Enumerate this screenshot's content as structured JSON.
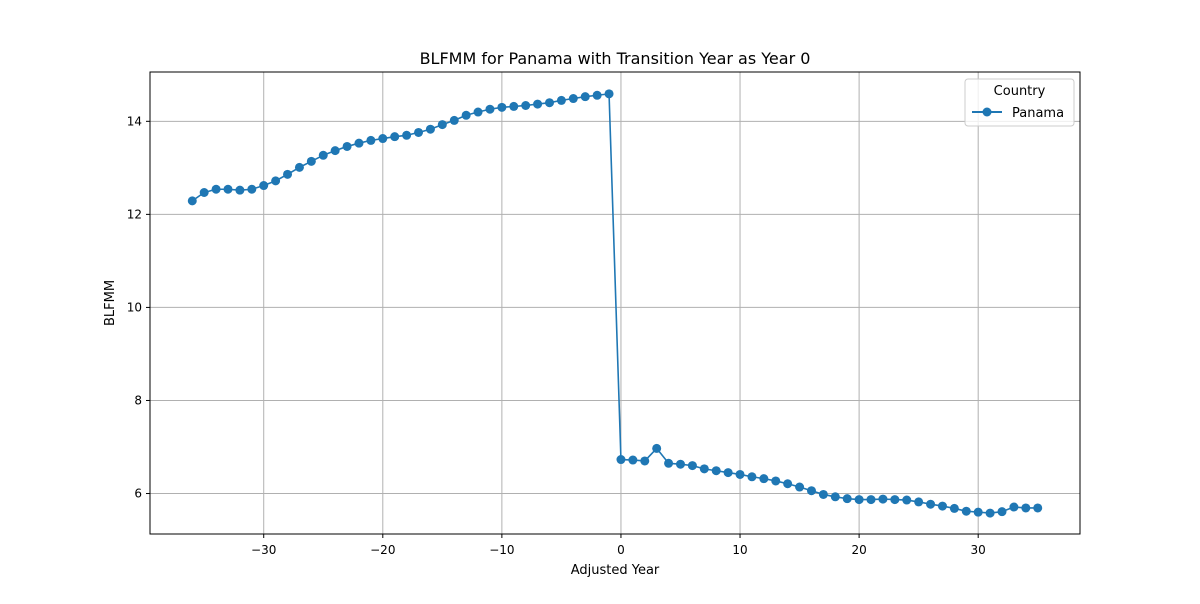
{
  "chart_data": {
    "type": "line",
    "title": "BLFMM for Panama with Transition Year as Year 0",
    "xlabel": "Adjusted Year",
    "ylabel": "BLFMM",
    "xlim": [
      -39.55,
      38.55
    ],
    "ylim": [
      5.13,
      15.06
    ],
    "xticks": [
      -30,
      -20,
      -10,
      0,
      10,
      20,
      30
    ],
    "xtick_labels": [
      "−30",
      "−20",
      "−10",
      "0",
      "10",
      "20",
      "30"
    ],
    "yticks": [
      6,
      8,
      10,
      12,
      14
    ],
    "ytick_labels": [
      "6",
      "8",
      "10",
      "12",
      "14"
    ],
    "grid": true,
    "legend": {
      "title": "Country",
      "placement": "top-right"
    },
    "series": [
      {
        "name": "Panama",
        "color": "#1f77b4",
        "marker": "circle",
        "x": [
          -36,
          -35,
          -34,
          -33,
          -32,
          -31,
          -30,
          -29,
          -28,
          -27,
          -26,
          -25,
          -24,
          -23,
          -22,
          -21,
          -20,
          -19,
          -18,
          -17,
          -16,
          -15,
          -14,
          -13,
          -12,
          -11,
          -10,
          -9,
          -8,
          -7,
          -6,
          -5,
          -4,
          -3,
          -2,
          -1,
          0,
          1,
          2,
          3,
          4,
          5,
          6,
          7,
          8,
          9,
          10,
          11,
          12,
          13,
          14,
          15,
          16,
          17,
          18,
          19,
          20,
          21,
          22,
          23,
          24,
          25,
          26,
          27,
          28,
          29,
          30,
          31,
          32,
          33,
          34,
          35
        ],
        "y": [
          12.29,
          12.47,
          12.54,
          12.54,
          12.52,
          12.54,
          12.62,
          12.72,
          12.86,
          13.01,
          13.14,
          13.27,
          13.37,
          13.46,
          13.53,
          13.59,
          13.63,
          13.67,
          13.7,
          13.76,
          13.83,
          13.93,
          14.02,
          14.13,
          14.2,
          14.26,
          14.3,
          14.32,
          14.34,
          14.37,
          14.4,
          14.45,
          14.49,
          14.53,
          14.56,
          14.59,
          6.73,
          6.72,
          6.7,
          6.97,
          6.65,
          6.63,
          6.6,
          6.53,
          6.49,
          6.45,
          6.41,
          6.36,
          6.32,
          6.27,
          6.21,
          6.14,
          6.06,
          5.98,
          5.93,
          5.89,
          5.87,
          5.87,
          5.88,
          5.87,
          5.86,
          5.82,
          5.77,
          5.73,
          5.68,
          5.62,
          5.6,
          5.58,
          5.61,
          5.71,
          5.69,
          5.69
        ]
      }
    ]
  }
}
